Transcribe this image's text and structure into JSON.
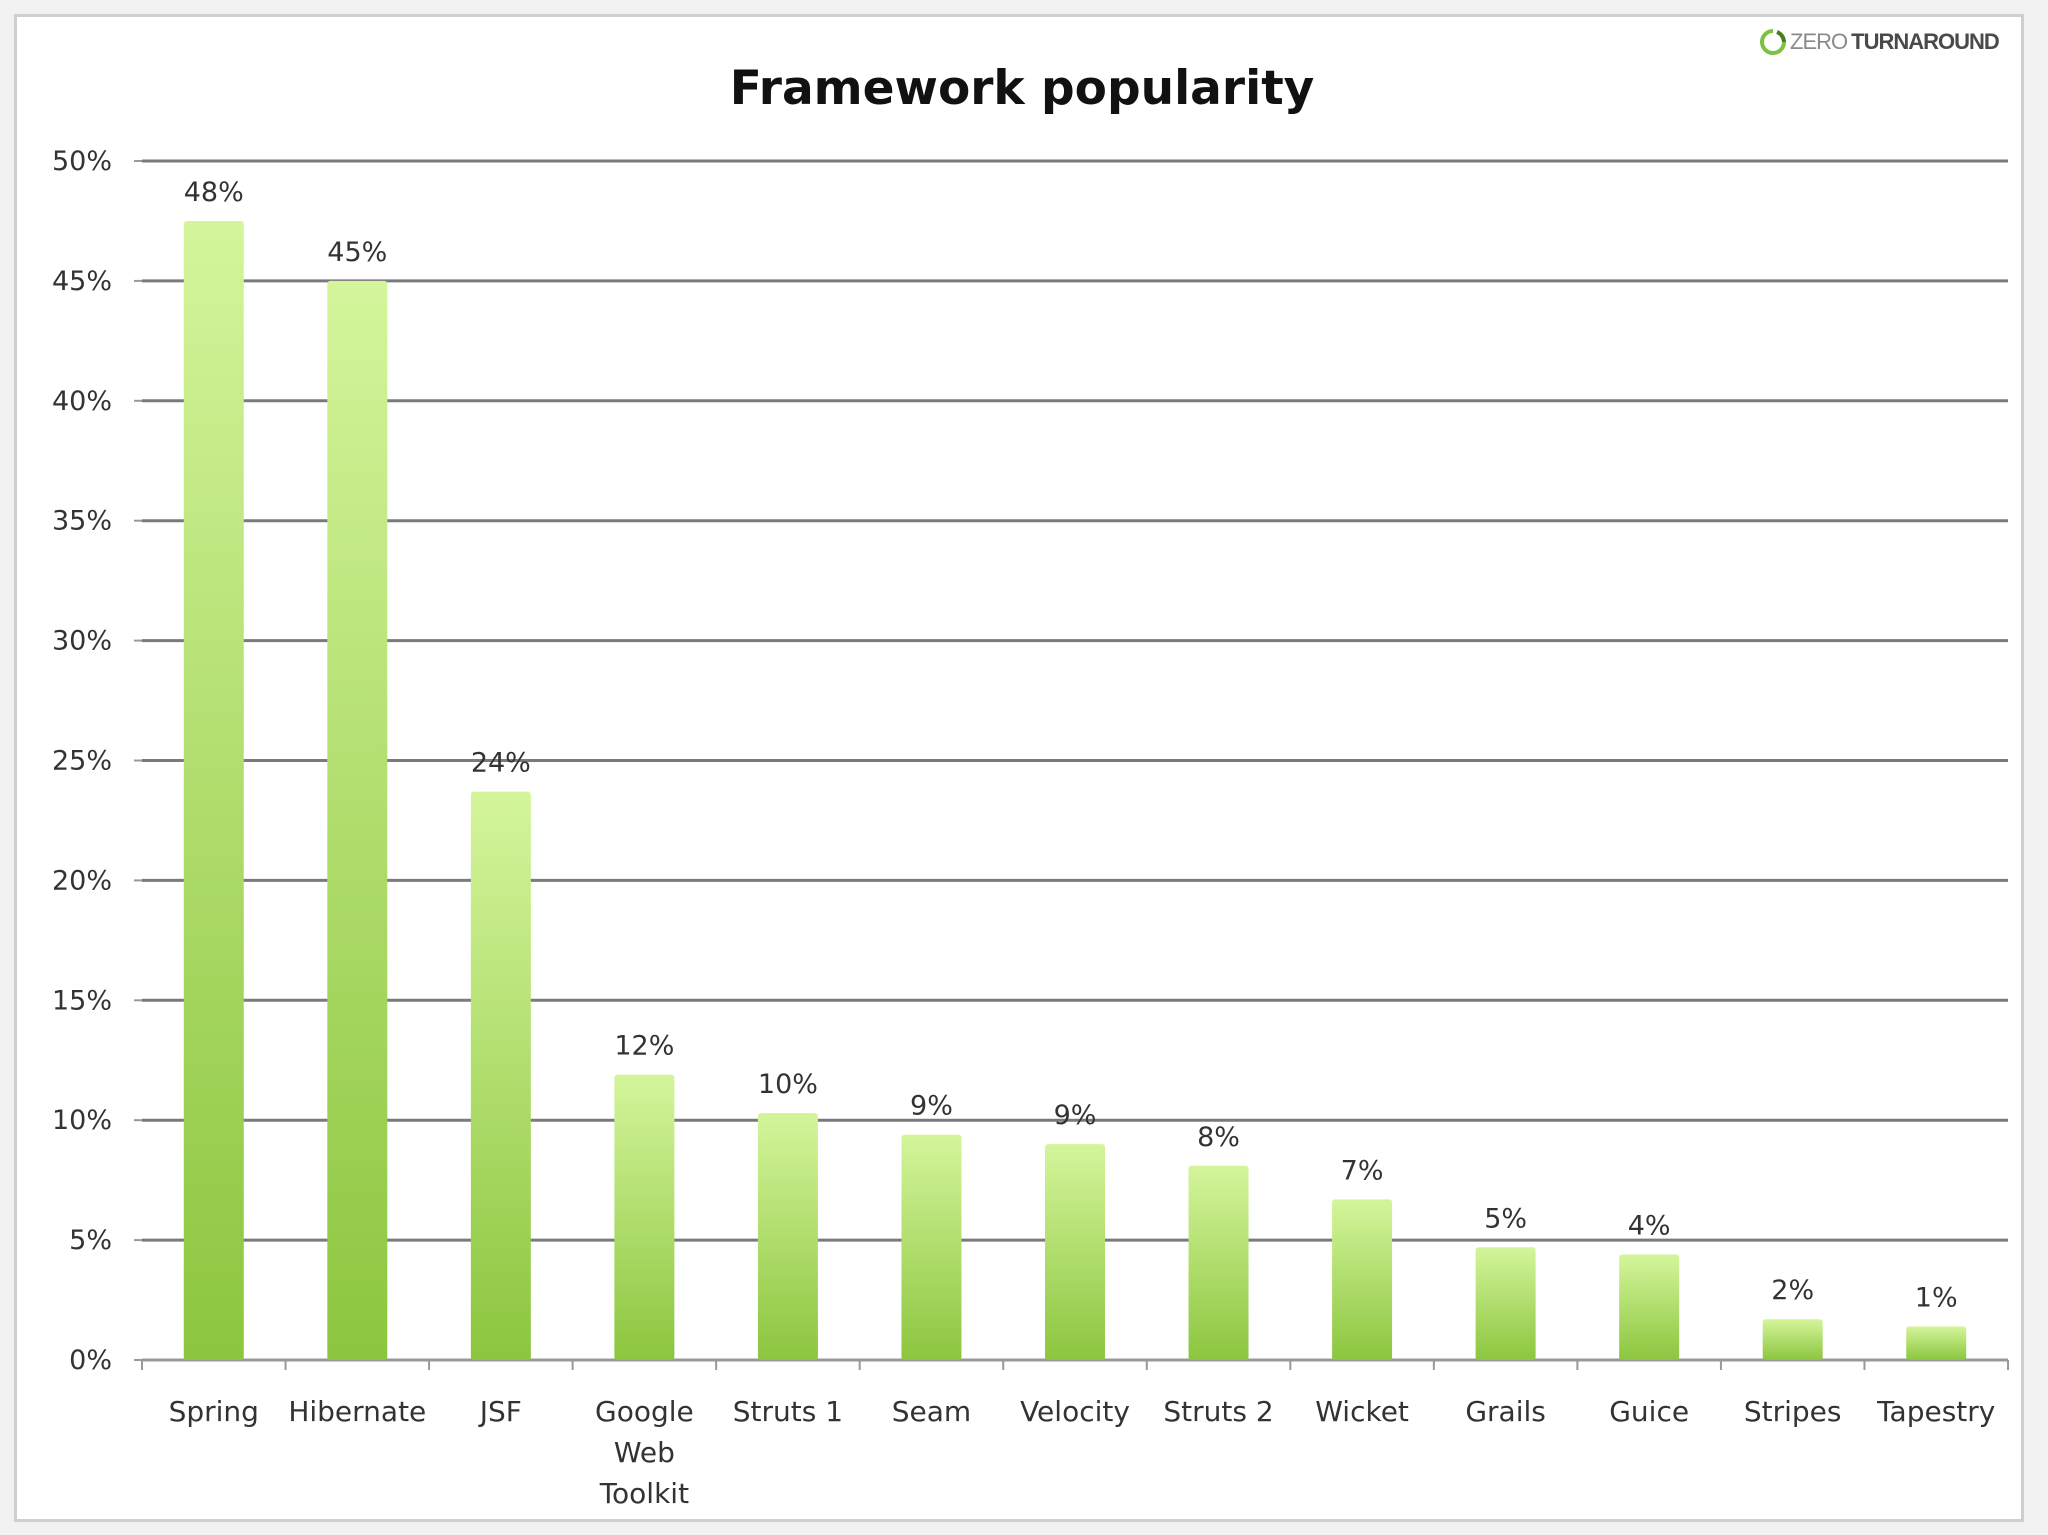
{
  "logo": {
    "zero": "ZERO",
    "turn": "TURNAROUND",
    "colors": {
      "ring_green": "#7cc23f"
    }
  },
  "chart_data": {
    "type": "bar",
    "title": "Framework popularity",
    "xlabel": "",
    "ylabel": "",
    "ylim": [
      0,
      50
    ],
    "yticks": [
      0,
      5,
      10,
      15,
      20,
      25,
      30,
      35,
      40,
      45,
      50
    ],
    "ytick_labels": [
      "0%",
      "5%",
      "10%",
      "15%",
      "20%",
      "25%",
      "30%",
      "35%",
      "40%",
      "45%",
      "50%"
    ],
    "grid": true,
    "legend": "none",
    "categories": [
      [
        "Spring"
      ],
      [
        "Hibernate"
      ],
      [
        "JSF"
      ],
      [
        "Google",
        "Web",
        "Toolkit"
      ],
      [
        "Struts 1"
      ],
      [
        "Seam"
      ],
      [
        "Velocity"
      ],
      [
        "Struts 2"
      ],
      [
        "Wicket"
      ],
      [
        "Grails"
      ],
      [
        "Guice"
      ],
      [
        "Stripes"
      ],
      [
        "Tapestry"
      ]
    ],
    "values": [
      47.5,
      45,
      23.7,
      11.9,
      10.3,
      9.4,
      9,
      8.1,
      6.7,
      4.7,
      4.4,
      1.7,
      1.4
    ],
    "data_labels": [
      "48%",
      "45%",
      "24%",
      "12%",
      "10%",
      "9%",
      "9%",
      "8%",
      "7%",
      "5%",
      "4%",
      "2%",
      "1%"
    ],
    "colors": {
      "bar_top": "#d4f59b",
      "bar_bottom": "#8cc63f",
      "grid": "#7a7a7a",
      "axis": "#999999"
    }
  }
}
